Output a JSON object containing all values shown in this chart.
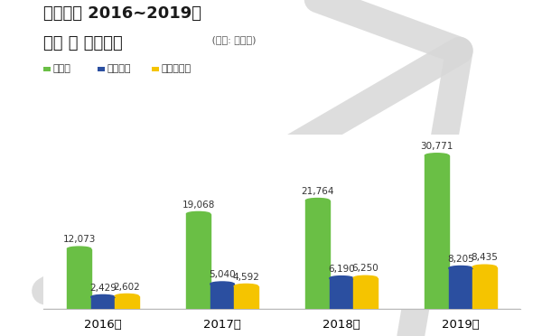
{
  "title_line1": "라온피플 2016~2019년",
  "title_line2": "매출 및 영업이익",
  "title_unit": " (단위: 백만원)",
  "legend_labels": [
    "매출액",
    "영업이익",
    "당기순이익"
  ],
  "years": [
    "2016년",
    "2017년",
    "2018년",
    "2019년"
  ],
  "sales": [
    12073,
    19068,
    21764,
    30771
  ],
  "operating": [
    2429,
    5040,
    6190,
    8205
  ],
  "net": [
    2602,
    4592,
    6250,
    8435
  ],
  "bar_colors": [
    "#6abf45",
    "#2b4fa0",
    "#f5c400"
  ],
  "bg_color": "#ffffff",
  "bar_width": 0.2,
  "ylim": [
    0,
    35000
  ],
  "label_fontsize": 7.5,
  "title_fontsize1": 13,
  "title_fontsize2": 13
}
